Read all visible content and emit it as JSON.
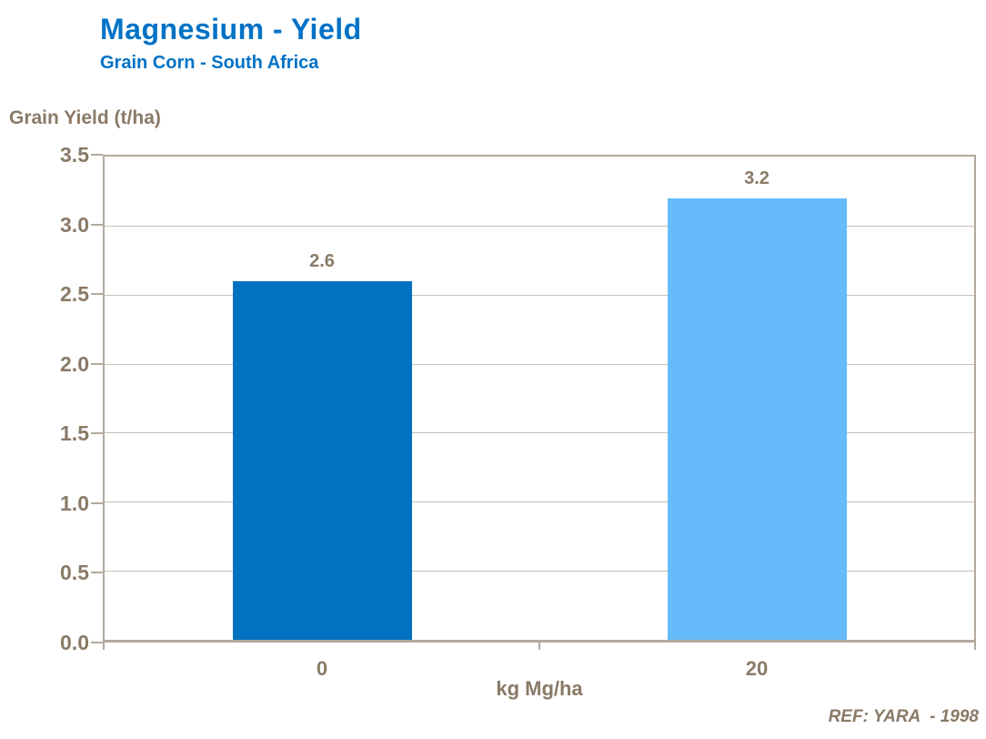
{
  "header": {
    "title": "Magnesium - Yield",
    "subtitle": "Grain Corn - South Africa"
  },
  "footer": {
    "ref": "REF: YARA  - 1998"
  },
  "colors": {
    "title_blue": "#0072c6",
    "text_brown": "#8a7a67",
    "axis_line": "#b2a99d",
    "gridline": "#c8c0b5",
    "bar_dark_blue": "#0072c0",
    "bar_light_blue": "#66bbfa",
    "background": "#ffffff"
  },
  "chart_data": {
    "type": "bar",
    "title": "Magnesium - Yield",
    "subtitle": "Grain Corn - South Africa",
    "categories": [
      "0",
      "20"
    ],
    "values": [
      2.6,
      3.2
    ],
    "data_labels": [
      "2.6",
      "3.2"
    ],
    "bar_colors": [
      "#0072c0",
      "#66bbfa"
    ],
    "xlabel": "kg Mg/ha",
    "ylabel": "Grain Yield (t/ha)",
    "ylim": [
      0,
      3.5
    ],
    "ytick_step": 0.5,
    "yticks": [
      "0.0",
      "0.5",
      "1.0",
      "1.5",
      "2.0",
      "2.5",
      "3.0",
      "3.5"
    ],
    "grid": true,
    "legend_position": "none"
  }
}
